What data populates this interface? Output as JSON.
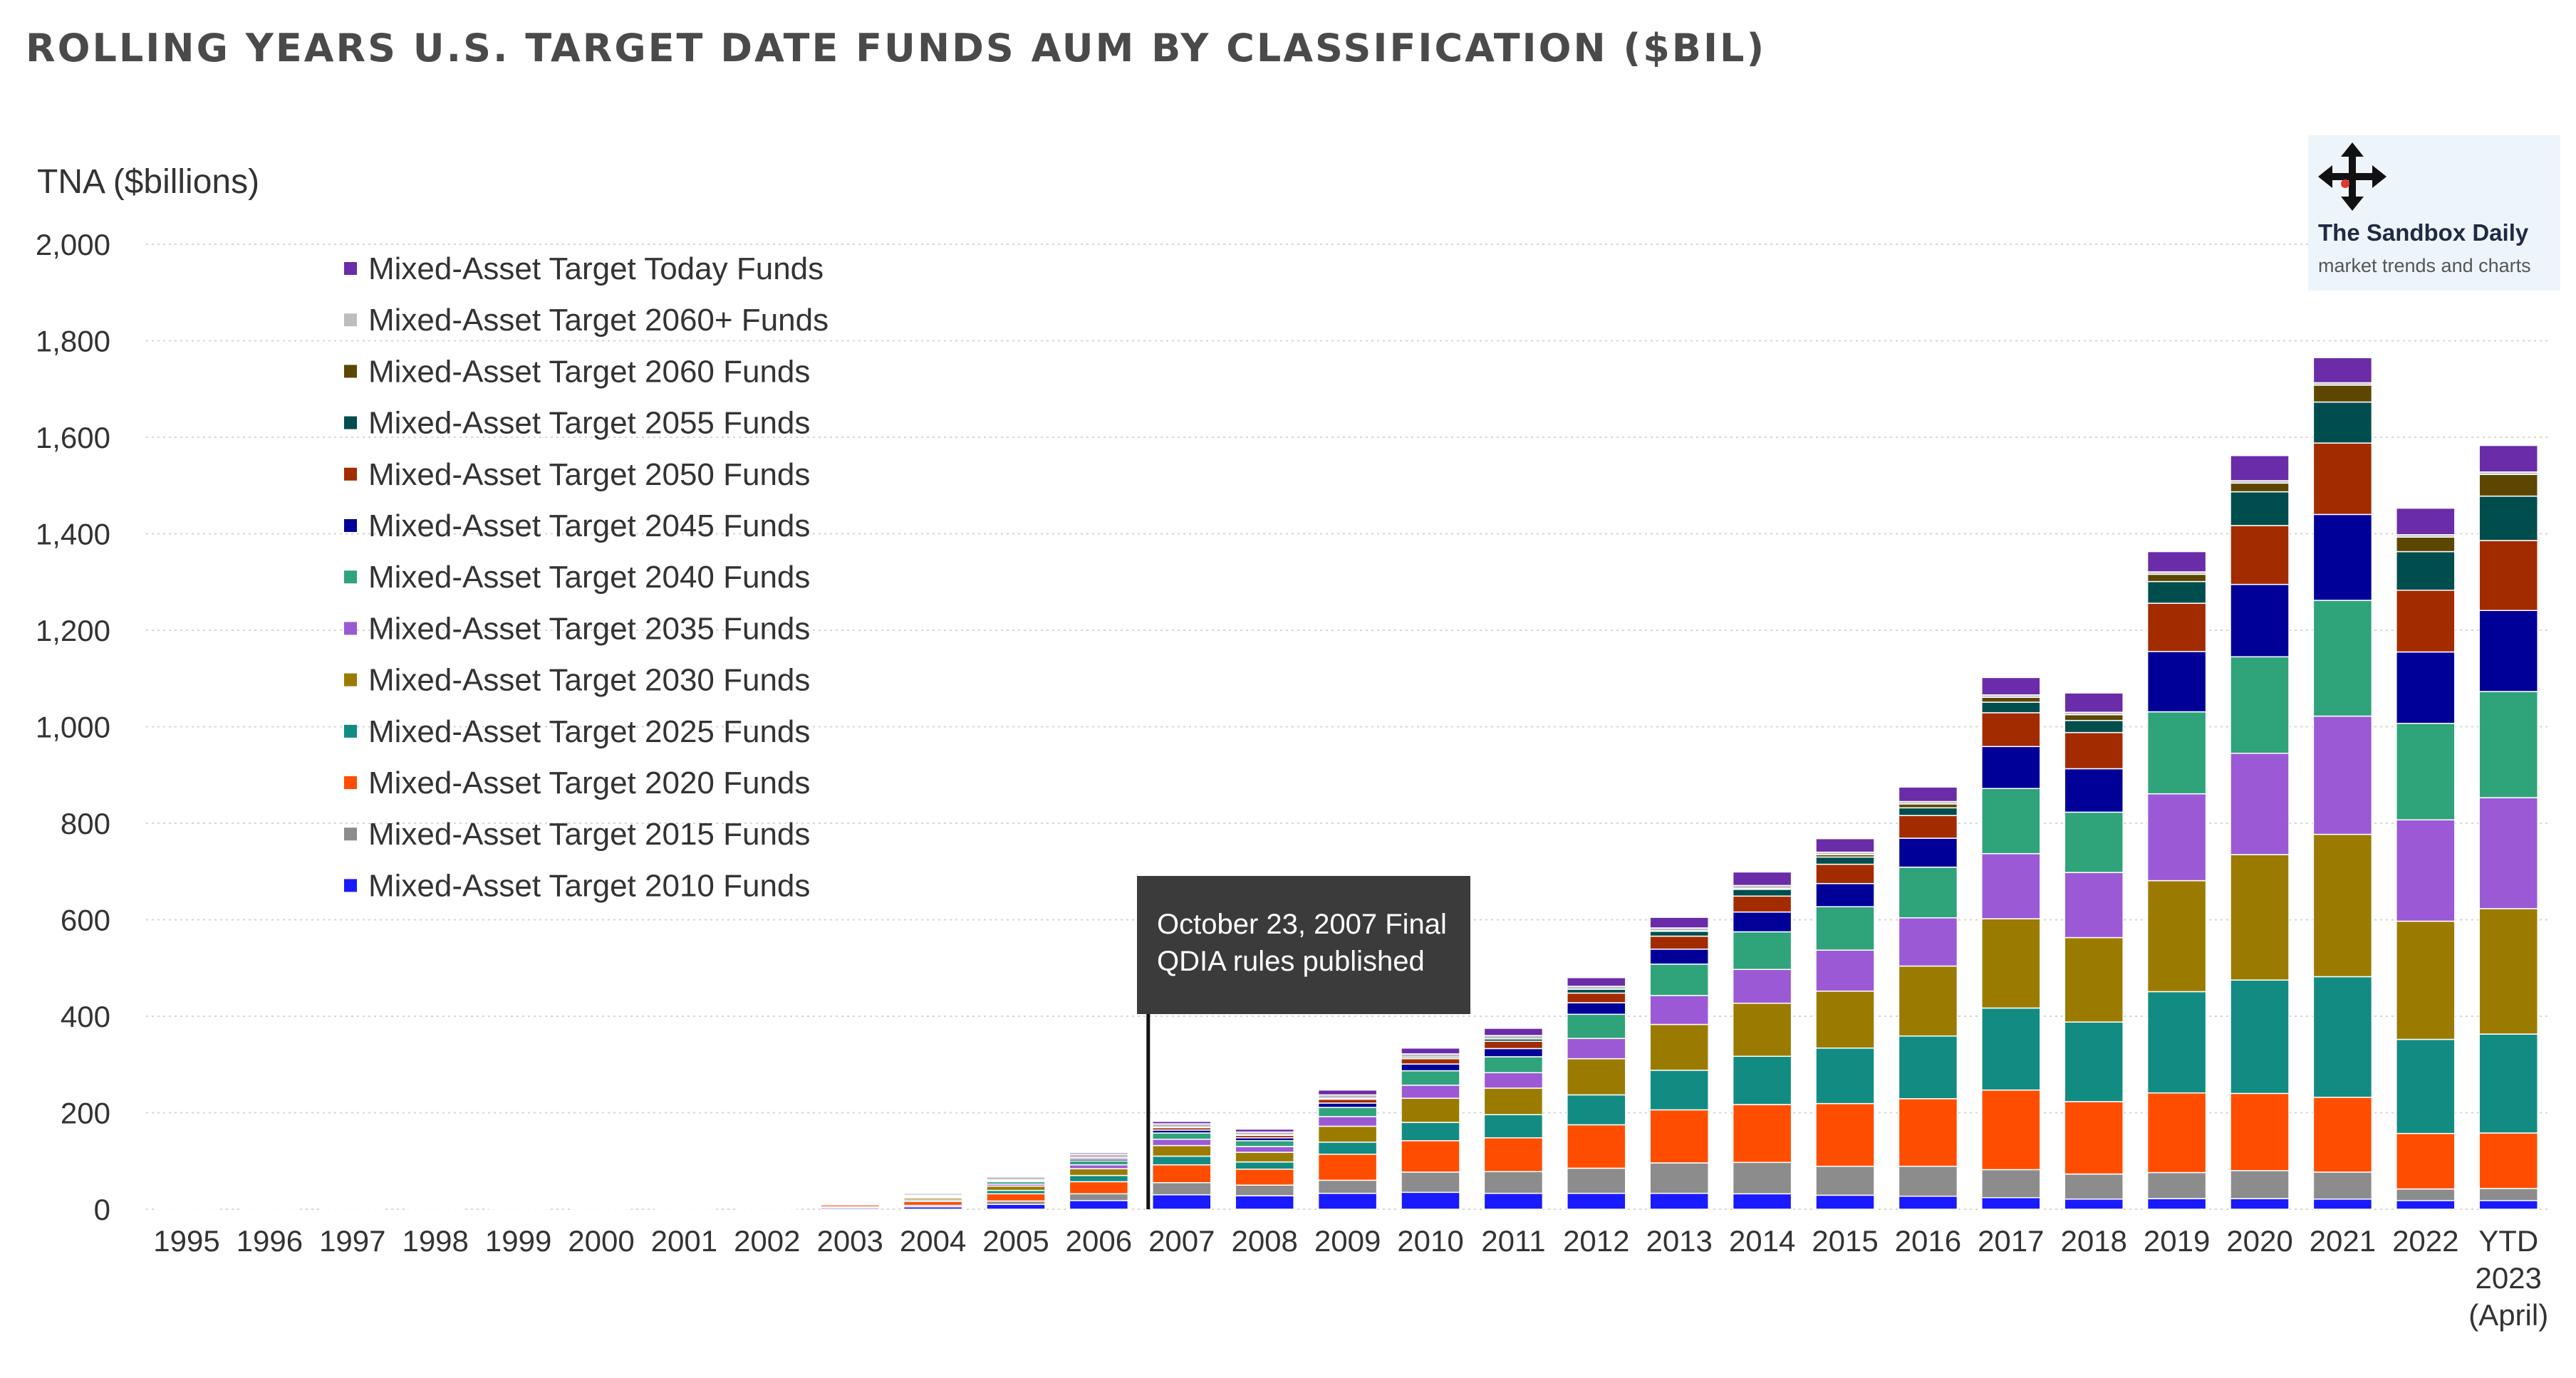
{
  "title": "ROLLING YEARS U.S. TARGET DATE FUNDS AUM BY CLASSIFICATION ($BIL)",
  "watermark": {
    "name": "The Sandbox Daily",
    "tagline": "market trends and charts",
    "icon": "move-arrows-icon"
  },
  "annotation": {
    "line1": "October 23, 2007 Final",
    "line2": "QDIA rules published",
    "category": "2007"
  },
  "chart_data": {
    "type": "bar",
    "stacked": true,
    "title": "ROLLING YEARS U.S. TARGET DATE FUNDS AUM BY CLASSIFICATION ($BIL)",
    "ylabel": "TNA ($billions)",
    "xlabel": "",
    "ylim": [
      0,
      2000
    ],
    "yticks": [
      "0",
      "200",
      "400",
      "600",
      "800",
      "1,000",
      "1,200",
      "1,400",
      "1,600",
      "1,800",
      "2,000"
    ],
    "grid": "horizontal dotted",
    "legend_position": "top-left",
    "categories": [
      "1995",
      "1996",
      "1997",
      "1998",
      "1999",
      "2000",
      "2001",
      "2002",
      "2003",
      "2004",
      "2005",
      "2006",
      "2007",
      "2008",
      "2009",
      "2010",
      "2011",
      "2012",
      "2013",
      "2014",
      "2015",
      "2016",
      "2017",
      "2018",
      "2019",
      "2020",
      "2021",
      "2022",
      "YTD 2023 (April)"
    ],
    "series": [
      {
        "name": "Mixed-Asset Target 2010 Funds",
        "color": "#1a1aff",
        "values": [
          0.3,
          0.4,
          0.5,
          0.7,
          0.8,
          1,
          1,
          2,
          3,
          5,
          10,
          18,
          30,
          28,
          33,
          35,
          33,
          33,
          33,
          32,
          29,
          27,
          24,
          21,
          22,
          22,
          21,
          18,
          18
        ]
      },
      {
        "name": "Mixed-Asset Target 2015 Funds",
        "color": "#8c8c8c",
        "values": [
          0.2,
          0.3,
          0.4,
          0.5,
          0.6,
          0.7,
          0.8,
          1,
          2,
          3,
          7,
          14,
          25,
          22,
          27,
          42,
          45,
          52,
          63,
          65,
          60,
          62,
          58,
          52,
          54,
          58,
          56,
          24,
          25
        ]
      },
      {
        "name": "Mixed-Asset Target 2020 Funds",
        "color": "#ff4d00",
        "values": [
          0.3,
          0.4,
          0.5,
          0.6,
          0.8,
          1,
          1,
          2,
          4,
          8,
          15,
          25,
          37,
          33,
          54,
          65,
          70,
          90,
          110,
          120,
          130,
          140,
          165,
          150,
          165,
          160,
          155,
          115,
          115
        ]
      },
      {
        "name": "Mixed-Asset Target 2025 Funds",
        "color": "#128c82",
        "values": [
          0,
          0,
          0,
          0,
          0,
          0,
          0,
          0.5,
          1,
          3,
          7,
          13,
          18,
          15,
          25,
          38,
          48,
          62,
          82,
          100,
          115,
          130,
          170,
          165,
          210,
          235,
          250,
          195,
          205
        ]
      },
      {
        "name": "Mixed-Asset Target 2030 Funds",
        "color": "#9a7b00",
        "values": [
          0.2,
          0.3,
          0.4,
          0.5,
          0.6,
          0.7,
          0.8,
          1,
          2,
          4,
          9,
          14,
          22,
          20,
          33,
          50,
          55,
          75,
          95,
          110,
          118,
          145,
          185,
          175,
          230,
          260,
          295,
          245,
          260
        ]
      },
      {
        "name": "Mixed-Asset Target 2035 Funds",
        "color": "#9b59d6",
        "values": [
          0,
          0,
          0,
          0,
          0,
          0,
          0,
          0.3,
          1,
          2,
          4,
          8,
          13,
          12,
          20,
          27,
          32,
          42,
          60,
          70,
          85,
          100,
          135,
          135,
          180,
          210,
          245,
          210,
          230
        ]
      },
      {
        "name": "Mixed-Asset Target 2040 Funds",
        "color": "#2fa37a",
        "values": [
          0,
          0,
          0,
          0,
          0,
          0,
          0,
          0.3,
          1,
          2,
          5,
          8,
          13,
          12,
          19,
          30,
          33,
          50,
          65,
          78,
          90,
          105,
          135,
          125,
          170,
          200,
          240,
          200,
          220
        ]
      },
      {
        "name": "Mixed-Asset Target 2045 Funds",
        "color": "#000099",
        "values": [
          0,
          0,
          0,
          0,
          0,
          0,
          0,
          0,
          0.2,
          1,
          2,
          4,
          6,
          6,
          9,
          14,
          17,
          24,
          31,
          41,
          48,
          60,
          87,
          90,
          125,
          150,
          178,
          148,
          168
        ]
      },
      {
        "name": "Mixed-Asset Target 2050 Funds",
        "color": "#a32b00",
        "values": [
          0,
          0,
          0,
          0,
          0,
          0,
          0,
          0,
          0.2,
          1,
          2,
          3,
          5,
          5,
          8,
          11,
          15,
          20,
          27,
          33,
          40,
          47,
          70,
          75,
          100,
          122,
          148,
          128,
          145
        ]
      },
      {
        "name": "Mixed-Asset Target 2055 Funds",
        "color": "#004d4d",
        "values": [
          0,
          0,
          0,
          0,
          0,
          0,
          0,
          0,
          0,
          0,
          0,
          0,
          1,
          1,
          2,
          3,
          5,
          8,
          10,
          14,
          15,
          16,
          22,
          25,
          45,
          70,
          85,
          80,
          92
        ]
      },
      {
        "name": "Mixed-Asset Target 2060 Funds",
        "color": "#5c4600",
        "values": [
          0,
          0,
          0,
          0,
          0,
          0,
          0,
          0,
          0,
          0,
          0,
          0,
          0,
          0,
          0,
          0,
          0,
          0,
          1,
          2,
          5,
          8,
          10,
          12,
          15,
          18,
          35,
          30,
          45
        ]
      },
      {
        "name": "Mixed-Asset Target 2060+ Funds",
        "color": "#bdbdbd",
        "values": [
          0.2,
          0.3,
          0.4,
          0.5,
          0.6,
          0.7,
          0.9,
          1.5,
          2.5,
          4,
          6,
          7,
          7,
          6,
          7,
          7,
          7,
          6,
          6,
          6,
          5,
          5,
          5,
          5,
          5,
          5,
          5,
          5,
          5
        ]
      },
      {
        "name": "Mixed-Asset Target Today Funds",
        "color": "#6a2ca8",
        "values": [
          0,
          0,
          0,
          0,
          0,
          0,
          0,
          0.2,
          0.5,
          1,
          2,
          3,
          5,
          6,
          10,
          12,
          15,
          18,
          22,
          28,
          28,
          30,
          36,
          40,
          42,
          52,
          52,
          55,
          55
        ]
      }
    ]
  }
}
